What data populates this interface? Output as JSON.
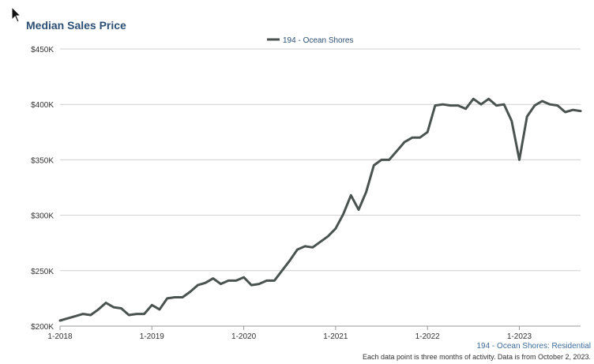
{
  "chart_data": {
    "type": "line",
    "title": "Median Sales Price",
    "xlabel": "",
    "ylabel": "",
    "x_tick_labels": [
      "1-2018",
      "1-2019",
      "1-2020",
      "1-2021",
      "1-2022",
      "1-2023"
    ],
    "y_tick_labels": [
      "$200K",
      "$250K",
      "$300K",
      "$350K",
      "$400K",
      "$450K"
    ],
    "y_ticks": [
      200000,
      250000,
      300000,
      350000,
      400000,
      450000
    ],
    "ylim": [
      200000,
      450000
    ],
    "x_range": [
      "2018-01",
      "2023-09"
    ],
    "grid": true,
    "legend_position": "top-center",
    "series": [
      {
        "name": "194 - Ocean Shores",
        "color": "#4a5350",
        "x": [
          "2018-01",
          "2018-02",
          "2018-03",
          "2018-04",
          "2018-05",
          "2018-06",
          "2018-07",
          "2018-08",
          "2018-09",
          "2018-10",
          "2018-11",
          "2018-12",
          "2019-01",
          "2019-02",
          "2019-03",
          "2019-04",
          "2019-05",
          "2019-06",
          "2019-07",
          "2019-08",
          "2019-09",
          "2019-10",
          "2019-11",
          "2019-12",
          "2020-01",
          "2020-02",
          "2020-03",
          "2020-04",
          "2020-05",
          "2020-06",
          "2020-07",
          "2020-08",
          "2020-09",
          "2020-10",
          "2020-11",
          "2020-12",
          "2021-01",
          "2021-02",
          "2021-03",
          "2021-04",
          "2021-05",
          "2021-06",
          "2021-07",
          "2021-08",
          "2021-09",
          "2021-10",
          "2021-11",
          "2021-12",
          "2022-01",
          "2022-02",
          "2022-03",
          "2022-04",
          "2022-05",
          "2022-06",
          "2022-07",
          "2022-08",
          "2022-09",
          "2022-10",
          "2022-11",
          "2022-12",
          "2023-01",
          "2023-02",
          "2023-03",
          "2023-04",
          "2023-05",
          "2023-06",
          "2023-07",
          "2023-08",
          "2023-09"
        ],
        "values": [
          205000,
          207000,
          209000,
          211000,
          210000,
          215000,
          221000,
          217000,
          216000,
          210000,
          211000,
          211000,
          219000,
          215000,
          225000,
          226000,
          226000,
          231000,
          237000,
          239000,
          243000,
          238000,
          241000,
          241000,
          244000,
          237000,
          238000,
          241000,
          241000,
          250000,
          259000,
          269000,
          272000,
          271000,
          276000,
          281000,
          288000,
          301000,
          318000,
          305000,
          321000,
          345000,
          350000,
          350000,
          358000,
          366000,
          370000,
          370000,
          375000,
          399000,
          400000,
          399000,
          399000,
          396000,
          405000,
          400000,
          405000,
          399000,
          400000,
          385000,
          350000,
          389000,
          399000,
          403000,
          400000,
          399000,
          393000,
          395000,
          394000
        ]
      }
    ]
  },
  "footer": {
    "series_label": "194 - Ocean Shores: Residential",
    "note": "Each data point is three months of activity. Data is from October 2, 2023."
  },
  "icons": {
    "cursor": "mouse-pointer-icon"
  }
}
